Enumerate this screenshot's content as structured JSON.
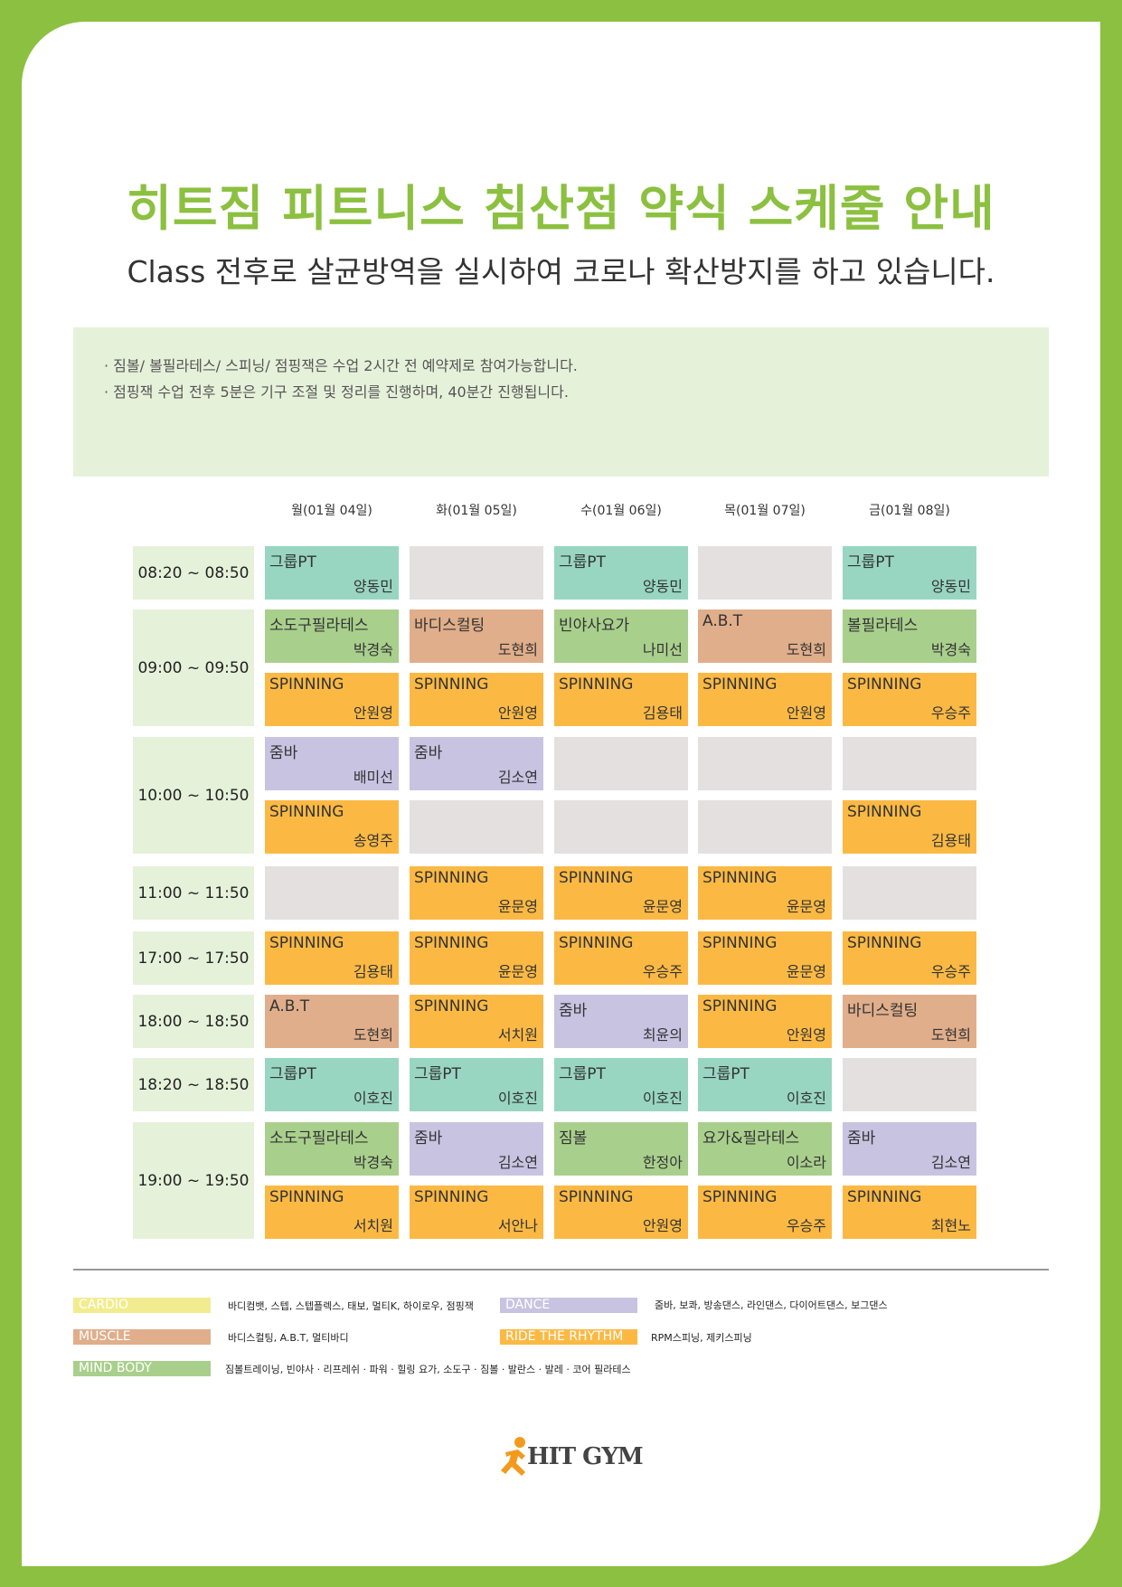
{
  "title": "히트짐 피트니스 침산점 약식 스케줄 안내",
  "subtitle": "Class 전후로 살균방역을 실시하여 코로나 확산방지를 하고 있습니다.",
  "notice": [
    "· 짐볼/ 볼필라테스/ 스피닝/ 점핑잭은 수업 2시간 전 예약제로 참여가능합니다.",
    "· 점핑잭 수업 전후 5분은 기구 조절 및 정리를 진행하며, 40분간 진행됩니다."
  ],
  "days": [
    "월(01월 04일)",
    "화(01월 05일)",
    "수(01월 06일)",
    "목(01월 07일)",
    "금(01월 08일)"
  ],
  "times": [
    "08:20 ~ 08:50",
    "09:00 ~ 09:50",
    "10:00 ~ 10:50",
    "11:00 ~ 11:50",
    "17:00 ~ 17:50",
    "18:00 ~ 18:50",
    "18:20 ~ 18:50",
    "19:00 ~ 19:50"
  ],
  "schedule": [
    [
      "그룹PT|양동민|pt",
      "||empty",
      "그룹PT|양동민|pt",
      "||empty",
      "그룹PT|양동민|pt"
    ],
    [
      "소도구필라테스|박경숙|mind",
      "바디스컬팅|도현희|muscle",
      "빈야사요가|나미선|mind",
      "A.B.T|도현희|muscle",
      "볼필라테스|박경숙|mind"
    ],
    [
      "SPINNING|안원영|spin",
      "SPINNING|안원영|spin",
      "SPINNING|김용태|spin",
      "SPINNING|안원영|spin",
      "SPINNING|우승주|spin"
    ],
    [
      "줌바|배미선|dance",
      "줌바|김소연|dance",
      "||empty",
      "||empty",
      "||empty"
    ],
    [
      "SPINNING|송영주|spin",
      "||empty",
      "||empty",
      "||empty",
      "SPINNING|김용태|spin"
    ],
    [
      "||empty",
      "SPINNING|윤문영|spin",
      "SPINNING|윤문영|spin",
      "SPINNING|윤문영|spin",
      "||empty"
    ],
    [
      "SPINNING|김용태|spin",
      "SPINNING|윤문영|spin",
      "SPINNING|우승주|spin",
      "SPINNING|윤문영|spin",
      "SPINNING|우승주|spin"
    ],
    [
      "A.B.T|도현희|muscle",
      "SPINNING|서치원|spin",
      "줌바|최윤의|dance",
      "SPINNING|안원영|spin",
      "바디스컬팅|도현희|muscle"
    ],
    [
      "그룹PT|이호진|pt",
      "그룹PT|이호진|pt",
      "그룹PT|이호진|pt",
      "그룹PT|이호진|pt",
      "||empty"
    ],
    [
      "소도구필라테스|박경숙|mind",
      "줌바|김소연|dance",
      "짐볼|한정아|mind",
      "요가&필라테스|이소라|mind",
      "줌바|김소연|dance"
    ],
    [
      "SPINNING|서치원|spin",
      "SPINNING|서안나|spin",
      "SPINNING|안원영|spin",
      "SPINNING|우승주|spin",
      "SPINNING|최현노|spin"
    ]
  ],
  "legend": [
    {
      "label": "CARDIO",
      "desc": "바디컴뱃, 스텝, 스텝플렉스, 태보, 멀티K, 하이로우, 점핑잭",
      "color": "#f2ec90"
    },
    {
      "label": "DANCE",
      "desc": "줌바, 보콰, 방송댄스, 라인댄스, 다이어트댄스, 보그댄스",
      "color": "#c9c3e2"
    },
    {
      "label": "MUSCLE",
      "desc": "바디스컬팅, A.B.T, 멀티바디",
      "color": "#e0ae8a"
    },
    {
      "label": "RIDE THE RHYTHM",
      "desc": "RPM스피닝, 제키스피닝",
      "color": "#fbb944"
    },
    {
      "label": "MIND BODY",
      "desc": "짐볼트레이닝, 빈야사 · 리프레쉬 · 파워 · 힐링 요가, 소도구 · 짐볼 · 발란스 · 발레 · 코어 필라테스",
      "color": "#a9cf8c"
    }
  ],
  "logo": {
    "text": "HIT GYM",
    "icon": "running-person-icon"
  }
}
